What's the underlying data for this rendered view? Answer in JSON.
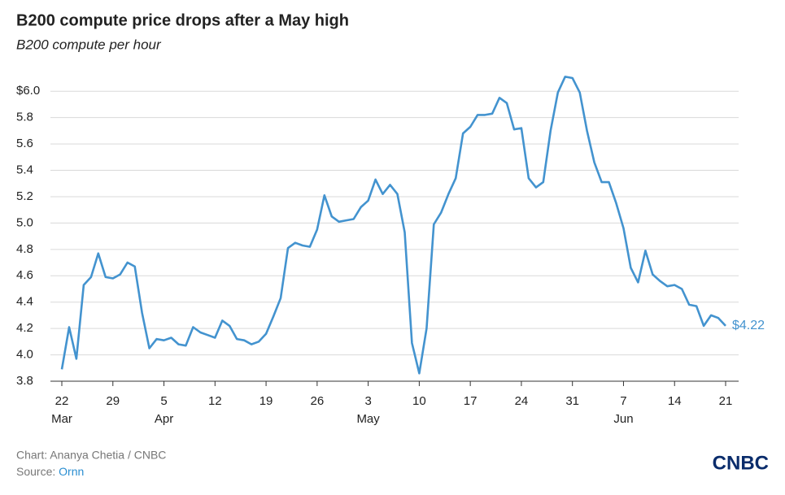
{
  "chart_data": {
    "type": "line",
    "title": "B200 compute price drops after a May high",
    "subtitle": "B200 compute per hour",
    "credit": "Chart: Ananya Chetia / CNBC",
    "source_label": "Source:",
    "source": "Ornn",
    "logo": "CNBC",
    "x": [
      "Mar 22",
      "Mar 23",
      "Mar 24",
      "Mar 25",
      "Mar 26",
      "Mar 27",
      "Mar 28",
      "Mar 29",
      "Mar 30",
      "Mar 31",
      "Apr 1",
      "Apr 2",
      "Apr 3",
      "Apr 4",
      "Apr 5",
      "Apr 6",
      "Apr 7",
      "Apr 8",
      "Apr 9",
      "Apr 10",
      "Apr 11",
      "Apr 12",
      "Apr 13",
      "Apr 14",
      "Apr 15",
      "Apr 16",
      "Apr 17",
      "Apr 18",
      "Apr 19",
      "Apr 20",
      "Apr 21",
      "Apr 22",
      "Apr 23",
      "Apr 24",
      "Apr 25",
      "Apr 26",
      "Apr 27",
      "Apr 28",
      "Apr 29",
      "Apr 30",
      "May 1",
      "May 2",
      "May 3",
      "May 4",
      "May 5",
      "May 6",
      "May 7",
      "May 8",
      "May 9",
      "May 10",
      "May 11",
      "May 12",
      "May 13",
      "May 14",
      "May 15",
      "May 16",
      "May 17",
      "May 18",
      "May 19",
      "May 20",
      "May 21",
      "May 22",
      "May 23",
      "May 24",
      "May 25",
      "May 26",
      "May 27",
      "May 28",
      "May 29",
      "May 30",
      "May 31",
      "Jun 1",
      "Jun 2",
      "Jun 3",
      "Jun 4",
      "Jun 5",
      "Jun 6",
      "Jun 7",
      "Jun 8",
      "Jun 9",
      "Jun 10",
      "Jun 11",
      "Jun 12",
      "Jun 13",
      "Jun 14",
      "Jun 15",
      "Jun 16",
      "Jun 17",
      "Jun 18",
      "Jun 19",
      "Jun 20",
      "Jun 21"
    ],
    "series": [
      {
        "name": "B200 compute per hour",
        "color": "#4393cf",
        "values": [
          3.89,
          4.21,
          3.97,
          4.53,
          4.59,
          4.77,
          4.59,
          4.58,
          4.61,
          4.7,
          4.67,
          4.32,
          4.05,
          4.12,
          4.11,
          4.13,
          4.08,
          4.07,
          4.21,
          4.17,
          4.15,
          4.13,
          4.26,
          4.22,
          4.12,
          4.11,
          4.08,
          4.1,
          4.16,
          4.29,
          4.43,
          4.81,
          4.85,
          4.83,
          4.82,
          4.95,
          5.21,
          5.05,
          5.01,
          5.02,
          5.03,
          5.12,
          5.17,
          5.33,
          5.22,
          5.29,
          5.22,
          4.93,
          4.09,
          3.86,
          4.2,
          4.99,
          5.08,
          5.22,
          5.34,
          5.68,
          5.73,
          5.82,
          5.82,
          5.83,
          5.95,
          5.91,
          5.71,
          5.72,
          5.34,
          5.27,
          5.31,
          5.7,
          5.99,
          6.11,
          6.1,
          5.99,
          5.7,
          5.46,
          5.31,
          5.31,
          5.15,
          4.96,
          4.66,
          4.55,
          4.79,
          4.61,
          4.56,
          4.52,
          4.53,
          4.5,
          4.38,
          4.37,
          4.22,
          4.3,
          4.28,
          4.22
        ]
      }
    ],
    "end_label": {
      "value": 4.22,
      "label": "$4.22"
    },
    "xticks": [
      {
        "value": "Mar 22",
        "label": "22",
        "month": "Mar"
      },
      {
        "value": "Mar 29",
        "label": "29"
      },
      {
        "value": "Apr 5",
        "label": "5",
        "month": "Apr"
      },
      {
        "value": "Apr 12",
        "label": "12"
      },
      {
        "value": "Apr 19",
        "label": "19"
      },
      {
        "value": "Apr 26",
        "label": "26"
      },
      {
        "value": "May 3",
        "label": "3",
        "month": "May"
      },
      {
        "value": "May 10",
        "label": "10"
      },
      {
        "value": "May 17",
        "label": "17"
      },
      {
        "value": "May 24",
        "label": "24"
      },
      {
        "value": "May 31",
        "label": "31"
      },
      {
        "value": "Jun 7",
        "label": "7",
        "month": "Jun"
      },
      {
        "value": "Jun 14",
        "label": "14"
      },
      {
        "value": "Jun 21",
        "label": "21"
      }
    ],
    "ylim": [
      3.8,
      6.1
    ],
    "yticks": [
      3.8,
      {
        "value": 4,
        "label": "4.0"
      },
      4.2,
      4.4,
      4.6,
      4.8,
      {
        "value": 5,
        "label": "5.0"
      },
      5.2,
      5.4,
      5.6,
      5.8,
      {
        "value": 6,
        "label": "$6.0"
      }
    ],
    "grid": true
  }
}
